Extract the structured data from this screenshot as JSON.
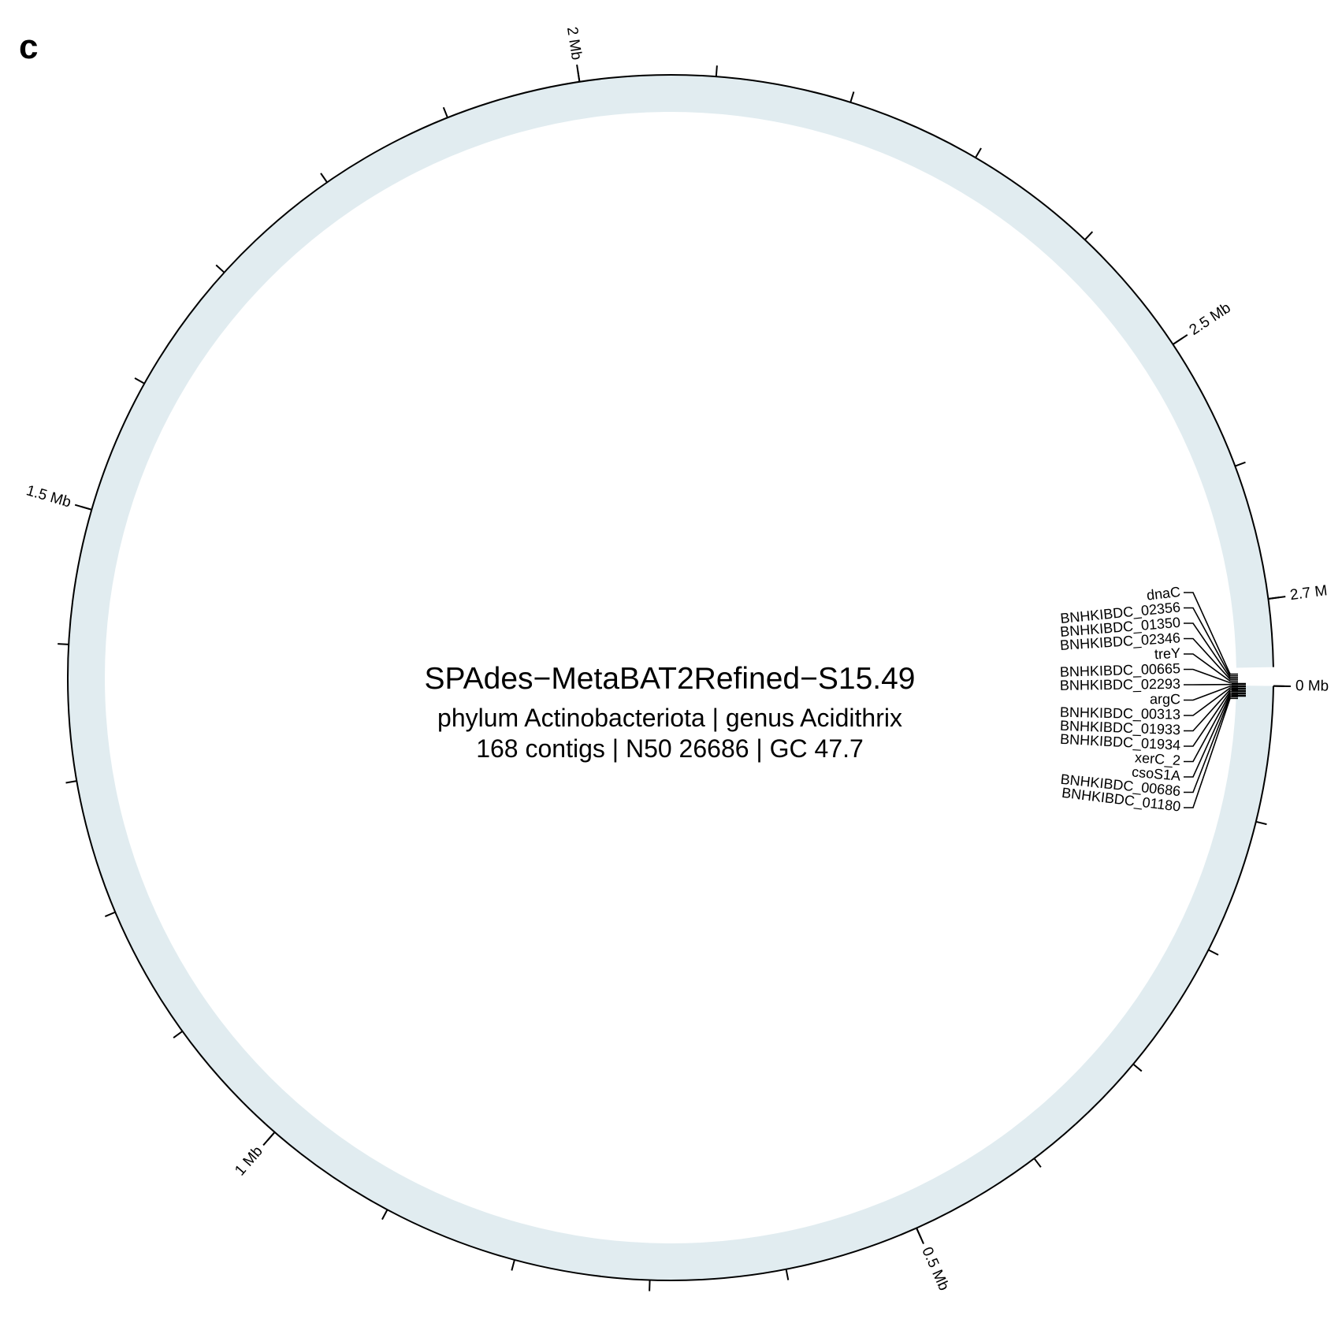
{
  "panel_label": "c",
  "genome": {
    "name": "SPAdes−MetaBAT2Refined−S15.49",
    "taxonomy": "phylum Actinobacteriota | genus Acidithrix",
    "stats": "168 contigs | N50 26686 | GC 47.7"
  },
  "colors": {
    "ring_fill": "#e1ecf0",
    "axis": "#000000",
    "background": "#ffffff"
  },
  "genome_length_mb": 2.75,
  "axis_labels": [
    {
      "mb": 0,
      "text": "0 Mb"
    },
    {
      "mb": 0.5,
      "text": "0.5 Mb"
    },
    {
      "mb": 1,
      "text": "1 Mb"
    },
    {
      "mb": 1.5,
      "text": "1.5 Mb"
    },
    {
      "mb": 2,
      "text": "2 Mb"
    },
    {
      "mb": 2.5,
      "text": "2.5 Mb"
    },
    {
      "mb": 2.7,
      "text": "2.7 M"
    }
  ],
  "minor_tick_step_mb": 0.1,
  "gene_labels": [
    "dnaC",
    "BNHKIBDC_02356",
    "BNHKIBDC_01350",
    "BNHKIBDC_02346",
    "treY",
    "BNHKIBDC_00665",
    "BNHKIBDC_02293",
    "argC",
    "BNHKIBDC_00313",
    "BNHKIBDC_01933",
    "BNHKIBDC_01934",
    "xerC_2",
    "csoS1A",
    "BNHKIBDC_00686",
    "BNHKIBDC_01180"
  ]
}
